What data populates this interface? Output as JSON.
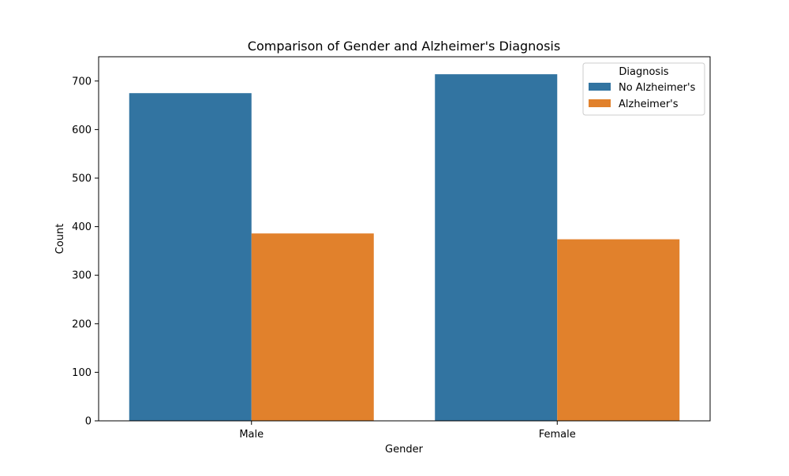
{
  "chart_data": {
    "type": "bar",
    "title": "Comparison of Gender and Alzheimer's Diagnosis",
    "xlabel": "Gender",
    "ylabel": "Count",
    "categories": [
      "Male",
      "Female"
    ],
    "series": [
      {
        "name": "No Alzheimer's",
        "values": [
          675,
          714
        ],
        "color": "#3274a1"
      },
      {
        "name": "Alzheimer's",
        "values": [
          386,
          374
        ],
        "color": "#e1812c"
      }
    ],
    "ylim": [
      0,
      750
    ],
    "yticks": [
      0,
      100,
      200,
      300,
      400,
      500,
      600,
      700
    ],
    "legend": {
      "title": "Diagnosis",
      "position": "top-right"
    },
    "grid": false
  }
}
